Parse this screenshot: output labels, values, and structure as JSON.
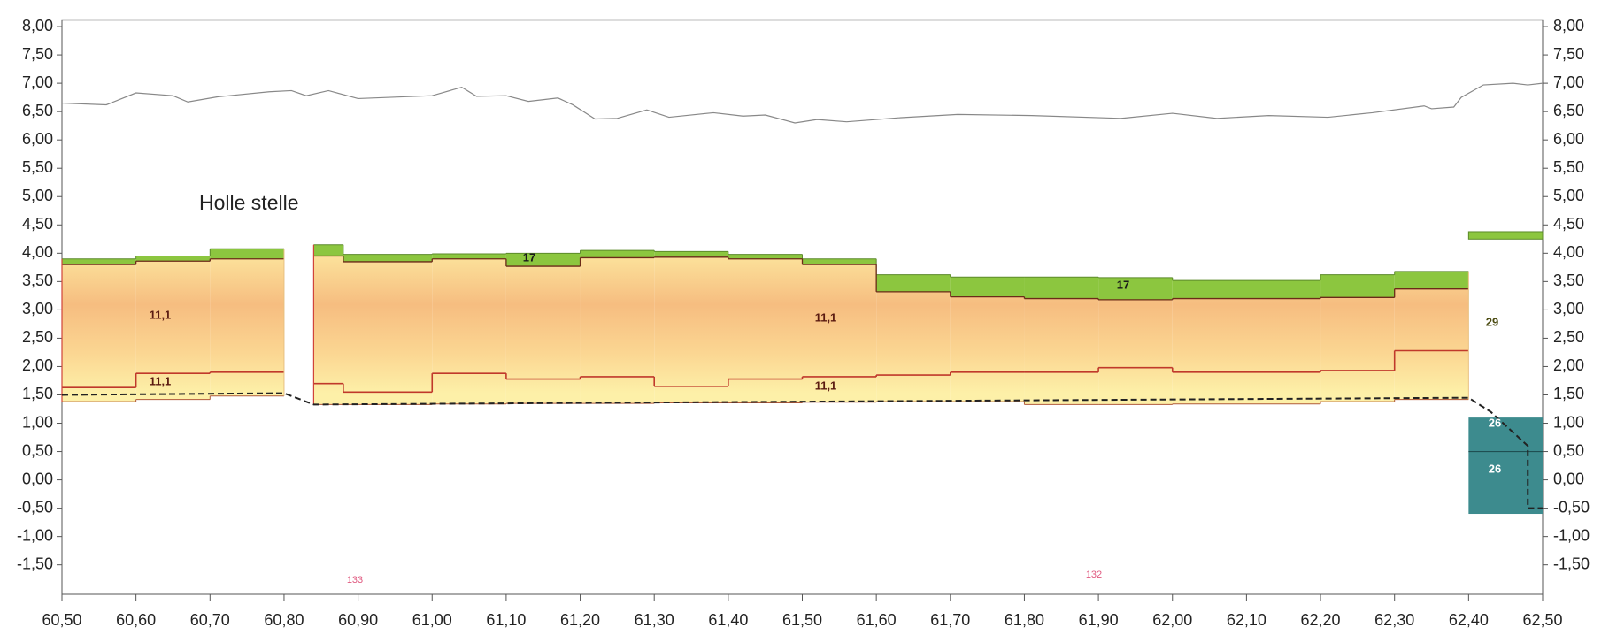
{
  "chart_data": {
    "type": "profile",
    "xlim": [
      60.5,
      62.5
    ],
    "ylim": [
      -2.02,
      8.11
    ],
    "xticks": [
      {
        "value": 60.5,
        "label": "60,50"
      },
      {
        "value": 60.6,
        "label": "60,60"
      },
      {
        "value": 60.7,
        "label": "60,70"
      },
      {
        "value": 60.8,
        "label": "60,80"
      },
      {
        "value": 60.9,
        "label": "60,90"
      },
      {
        "value": 61.0,
        "label": "61,00"
      },
      {
        "value": 61.1,
        "label": "61,10"
      },
      {
        "value": 61.2,
        "label": "61,20"
      },
      {
        "value": 61.3,
        "label": "61,30"
      },
      {
        "value": 61.4,
        "label": "61,40"
      },
      {
        "value": 61.5,
        "label": "61,50"
      },
      {
        "value": 61.6,
        "label": "61,60"
      },
      {
        "value": 61.7,
        "label": "61,70"
      },
      {
        "value": 61.8,
        "label": "61,80"
      },
      {
        "value": 61.9,
        "label": "61,90"
      },
      {
        "value": 62.0,
        "label": "62,00"
      },
      {
        "value": 62.1,
        "label": "62,10"
      },
      {
        "value": 62.2,
        "label": "62,20"
      },
      {
        "value": 62.3,
        "label": "62,30"
      },
      {
        "value": 62.4,
        "label": "62,40"
      },
      {
        "value": 62.5,
        "label": "62,50"
      }
    ],
    "yticks": [
      {
        "value": 8,
        "label": "8,00"
      },
      {
        "value": 7.5,
        "label": "7,50"
      },
      {
        "value": 7,
        "label": "7,00"
      },
      {
        "value": 6.5,
        "label": "6,50"
      },
      {
        "value": 6,
        "label": "6,00"
      },
      {
        "value": 5.5,
        "label": "5,50"
      },
      {
        "value": 5,
        "label": "5,00"
      },
      {
        "value": 4.5,
        "label": "4,50"
      },
      {
        "value": 4,
        "label": "4,00"
      },
      {
        "value": 3.5,
        "label": "3,50"
      },
      {
        "value": 3,
        "label": "3,00"
      },
      {
        "value": 2.5,
        "label": "2,50"
      },
      {
        "value": 2,
        "label": "2,00"
      },
      {
        "value": 1.5,
        "label": "1,50"
      },
      {
        "value": 1,
        "label": "1,00"
      },
      {
        "value": 0.5,
        "label": "0,50"
      },
      {
        "value": 0,
        "label": "0,00"
      },
      {
        "value": -0.5,
        "label": "-0,50"
      },
      {
        "value": -1,
        "label": "-1,00"
      },
      {
        "value": -1.5,
        "label": "-1,50"
      }
    ],
    "y2lim": [
      -2.02,
      8.11
    ],
    "y2ticks": [
      {
        "value": 8,
        "label": "8,00"
      },
      {
        "value": 7.5,
        "label": "7,50"
      },
      {
        "value": 7,
        "label": "7,00"
      },
      {
        "value": 6.5,
        "label": "6,50"
      },
      {
        "value": 6,
        "label": "6,00"
      },
      {
        "value": 5.5,
        "label": "5,50"
      },
      {
        "value": 5,
        "label": "5,00"
      },
      {
        "value": 4.5,
        "label": "4,50"
      },
      {
        "value": 4,
        "label": "4,00"
      },
      {
        "value": 3.5,
        "label": "3,50"
      },
      {
        "value": 3,
        "label": "3,00"
      },
      {
        "value": 2.5,
        "label": "2,50"
      },
      {
        "value": 2,
        "label": "2,00"
      },
      {
        "value": 1.5,
        "label": "1,50"
      },
      {
        "value": 1,
        "label": "1,00"
      },
      {
        "value": 0.5,
        "label": "0,50"
      },
      {
        "value": 0,
        "label": "0,00"
      },
      {
        "value": -0.5,
        "label": "-0,50"
      },
      {
        "value": -1,
        "label": "-1,00"
      },
      {
        "value": -1.5,
        "label": "-1,50"
      }
    ],
    "surface": {
      "color": "#888888",
      "x": [
        60.5,
        60.56,
        60.6,
        60.65,
        60.67,
        60.71,
        60.78,
        60.81,
        60.83,
        60.86,
        60.9,
        61.0,
        61.04,
        61.06,
        61.1,
        61.13,
        61.17,
        61.19,
        61.22,
        61.25,
        61.29,
        61.32,
        61.38,
        61.42,
        61.45,
        61.49,
        61.52,
        61.56,
        61.63,
        61.71,
        61.81,
        61.93,
        62.0,
        62.06,
        62.13,
        62.21,
        62.27,
        62.34,
        62.35,
        62.38,
        62.39,
        62.42,
        62.46,
        62.48,
        62.5
      ],
      "y": [
        6.65,
        6.62,
        6.83,
        6.78,
        6.67,
        6.76,
        6.85,
        6.87,
        6.78,
        6.87,
        6.73,
        6.78,
        6.93,
        6.77,
        6.78,
        6.68,
        6.74,
        6.62,
        6.37,
        6.38,
        6.53,
        6.4,
        6.48,
        6.42,
        6.44,
        6.3,
        6.36,
        6.32,
        6.39,
        6.45,
        6.43,
        6.38,
        6.47,
        6.38,
        6.43,
        6.4,
        6.48,
        6.6,
        6.55,
        6.58,
        6.75,
        6.97,
        7.0,
        6.97,
        7.0
      ]
    },
    "dashed": {
      "color": "#222222",
      "x": [
        60.5,
        60.8,
        60.84,
        62.4,
        62.43,
        62.48,
        62.48,
        62.5
      ],
      "y": [
        1.5,
        1.53,
        1.33,
        1.45,
        1.2,
        0.6,
        -0.5,
        -0.5
      ]
    },
    "segments": [
      {
        "x": [
          60.5,
          60.6,
          60.7,
          60.8
        ],
        "green_top": [
          3.9,
          3.95,
          4.08
        ],
        "green_bottom": [
          3.8,
          3.86,
          3.9
        ],
        "red": [
          1.63,
          1.88,
          1.9
        ],
        "bottom": [
          1.38,
          1.42,
          1.48
        ]
      },
      {
        "x": [
          60.84,
          60.88,
          61.0,
          61.1,
          61.2,
          61.3,
          61.4,
          61.5,
          61.6,
          61.7,
          61.8,
          61.9,
          62.0,
          62.2,
          62.3,
          62.4
        ],
        "green_top": [
          4.15,
          3.98,
          3.99,
          4.0,
          4.05,
          4.03,
          3.98,
          3.9,
          3.62,
          3.58,
          3.58,
          3.57,
          3.52,
          3.62,
          3.68
        ],
        "green_bottom": [
          3.95,
          3.85,
          3.9,
          3.77,
          3.92,
          3.93,
          3.9,
          3.8,
          3.32,
          3.23,
          3.2,
          3.18,
          3.2,
          3.22,
          3.37
        ],
        "red": [
          1.7,
          1.55,
          1.88,
          1.78,
          1.82,
          1.65,
          1.78,
          1.82,
          1.85,
          1.9,
          1.9,
          1.98,
          1.9,
          1.93,
          2.28
        ],
        "bottom": [
          1.33,
          1.33,
          1.34,
          1.35,
          1.35,
          1.36,
          1.36,
          1.37,
          1.38,
          1.38,
          1.33,
          1.33,
          1.34,
          1.38,
          1.42
        ]
      }
    ],
    "right_block": {
      "x": [
        62.4,
        62.5
      ],
      "green_top": 4.38,
      "green_bottom": 4.25,
      "teal_top": 1.1,
      "teal_mid": 0.5,
      "teal_bottom": -0.6
    },
    "layer_labels": [
      "11,1",
      "11,1",
      "17",
      "17",
      "11,1",
      "11,1",
      "29",
      "26",
      "26"
    ],
    "annotations": [
      "Holle stelle",
      "133",
      "132"
    ]
  }
}
